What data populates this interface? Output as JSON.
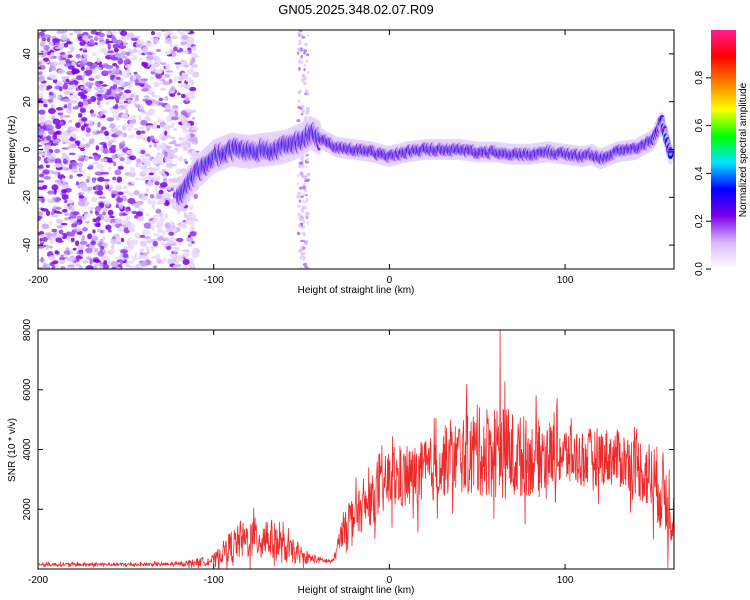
{
  "title": "GN05.2025.348.02.07.R09",
  "chart_data": [
    {
      "type": "heatmap",
      "name": "spectrogram",
      "xlabel": "Height of straight line (km)",
      "ylabel": "Frequency (Hz)",
      "xlim": [
        -200,
        162
      ],
      "ylim": [
        -50,
        50
      ],
      "x_ticks": [
        -200,
        -100,
        0,
        100
      ],
      "y_ticks": [
        -40,
        -20,
        0,
        20,
        40
      ],
      "colorbar": {
        "label": "Normalized spectral amplitude",
        "range": [
          0,
          1
        ],
        "ticks": [
          "0.0",
          "0.2",
          "0.4",
          "0.6",
          "0.8"
        ],
        "tick_values": [
          0.0,
          0.2,
          0.4,
          0.6,
          0.8
        ],
        "stops": [
          "#ffffff",
          "#d9b8ff",
          "#7a00e6",
          "#0000ff",
          "#00e5ff",
          "#00ff00",
          "#ffff00",
          "#ff7f00",
          "#ff0000",
          "#ff1f8f"
        ]
      },
      "ridge": {
        "x": [
          -120,
          -110,
          -100,
          -90,
          -80,
          -70,
          -60,
          -50,
          -45,
          -40,
          -30,
          -20,
          -10,
          0,
          10,
          20,
          30,
          40,
          50,
          60,
          70,
          80,
          90,
          100,
          110,
          115,
          120,
          130,
          140,
          150,
          155,
          160
        ],
        "y": [
          -20,
          -10,
          -3,
          0,
          -1,
          0,
          1,
          4,
          7,
          5,
          1,
          0,
          -1,
          -3,
          -1,
          0,
          0,
          0,
          -1,
          -1,
          -2,
          -2,
          -1,
          -2,
          -3,
          -2,
          -4,
          -1,
          0,
          4,
          12,
          -2
        ]
      },
      "noise_region_km": [
        -200,
        -110
      ],
      "annotation_note": "Noise scatter across all frequencies for heights below about -110 km; narrow band near -50 km"
    },
    {
      "type": "line",
      "name": "snr",
      "xlabel": "Height of straight line (km)",
      "ylabel": "SNR (10 * v/v)",
      "xlim": [
        -200,
        162
      ],
      "ylim": [
        0,
        8000
      ],
      "x_ticks": [
        -200,
        -100,
        0,
        100
      ],
      "y_ticks": [
        2000,
        4000,
        6000,
        8000
      ],
      "color": "#ee2a2a",
      "envelope": {
        "x": [
          -200,
          -150,
          -120,
          -100,
          -90,
          -80,
          -70,
          -60,
          -50,
          -40,
          -32,
          -25,
          -15,
          -5,
          0,
          10,
          20,
          30,
          40,
          50,
          60,
          70,
          80,
          90,
          100,
          110,
          120,
          130,
          140,
          150,
          160
        ],
        "mean": [
          150,
          150,
          160,
          300,
          800,
          1000,
          1100,
          700,
          400,
          300,
          250,
          1600,
          2000,
          2600,
          3000,
          3000,
          3200,
          3500,
          3800,
          3900,
          4000,
          3800,
          3700,
          3900,
          3800,
          3700,
          3800,
          3700,
          3500,
          3000,
          2200
        ],
        "amp": [
          80,
          80,
          80,
          250,
          700,
          900,
          1000,
          700,
          300,
          150,
          100,
          900,
          1000,
          1200,
          1400,
          1400,
          1500,
          1500,
          1700,
          2000,
          2200,
          2000,
          1700,
          1500,
          1400,
          1300,
          1300,
          1300,
          1400,
          1700,
          2000
        ]
      },
      "peak": {
        "x": 63,
        "y": 8000
      }
    }
  ]
}
